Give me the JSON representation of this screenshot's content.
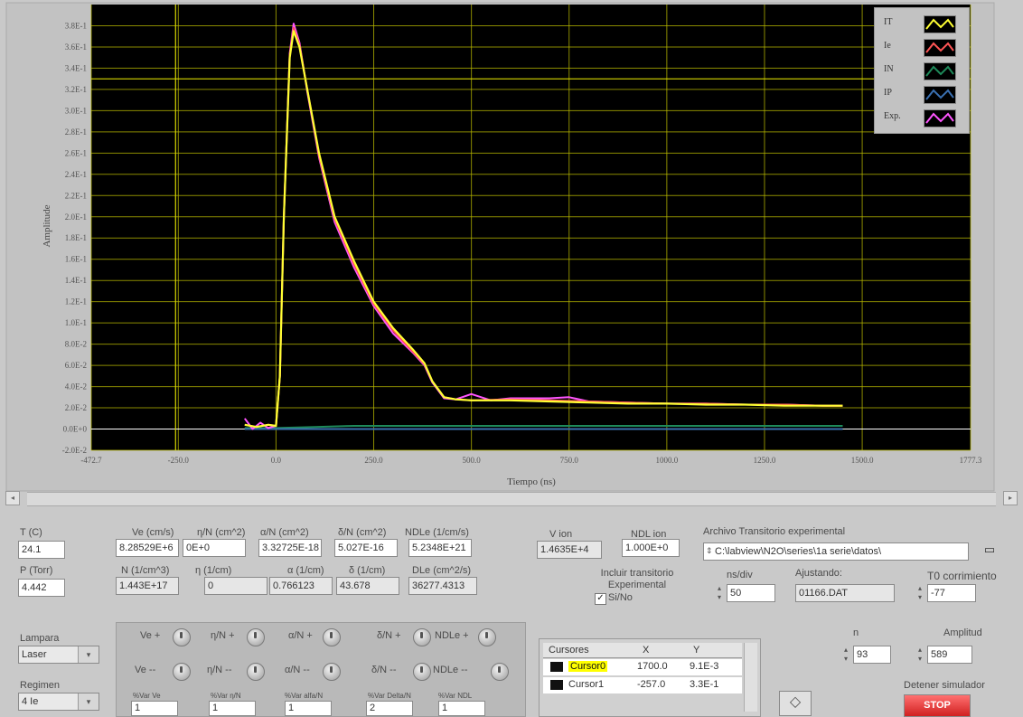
{
  "chart_data": {
    "type": "line",
    "xlabel": "Tiempo (ns)",
    "ylabel": "Amplitude",
    "xlim": [
      -472.7,
      1777.3
    ],
    "ylim": [
      -0.02,
      0.4
    ],
    "x_ticks": [
      "-472.7",
      "-250.0",
      "0.0",
      "250.0",
      "500.0",
      "750.0",
      "1000.0",
      "1250.0",
      "1500.0",
      "1777.3"
    ],
    "y_ticks": [
      "-2.0E-2",
      "0.0E+0",
      "2.0E-2",
      "4.0E-2",
      "6.0E-2",
      "8.0E-2",
      "1.0E-1",
      "1.2E-1",
      "1.4E-1",
      "1.6E-1",
      "1.8E-1",
      "2.0E-1",
      "2.2E-1",
      "2.4E-1",
      "2.6E-1",
      "2.8E-1",
      "3.0E-1",
      "3.2E-1",
      "3.4E-1",
      "3.6E-1",
      "3.8E-1"
    ],
    "grid": true,
    "legend_position": "top-right",
    "cursor_x_value": -257.0,
    "cursor_y_value": 0.33,
    "series": [
      {
        "name": "IT",
        "color": "#ffff33",
        "x": [
          -80,
          -50,
          -20,
          0,
          10,
          20,
          35,
          45,
          60,
          80,
          110,
          150,
          200,
          250,
          300,
          350,
          380,
          400,
          430,
          460,
          500,
          600,
          700,
          800,
          900,
          1000,
          1100,
          1200,
          1300,
          1400,
          1450
        ],
        "y": [
          0.004,
          0.002,
          0.004,
          0.003,
          0.05,
          0.2,
          0.35,
          0.375,
          0.36,
          0.32,
          0.26,
          0.2,
          0.158,
          0.12,
          0.095,
          0.075,
          0.062,
          0.045,
          0.03,
          0.028,
          0.027,
          0.027,
          0.026,
          0.025,
          0.024,
          0.024,
          0.023,
          0.023,
          0.022,
          0.022,
          0.022
        ]
      },
      {
        "name": "Ie",
        "color": "#ff5555",
        "x": [
          -80,
          -50,
          -20,
          0,
          10,
          20,
          35,
          45,
          60,
          80,
          110,
          150,
          200,
          250,
          300,
          350,
          380,
          400,
          430,
          460,
          500,
          600,
          700,
          800,
          900,
          1000,
          1100,
          1200,
          1300,
          1400,
          1450
        ],
        "y": [
          0.004,
          0.002,
          0.004,
          0.003,
          0.05,
          0.2,
          0.352,
          0.378,
          0.362,
          0.32,
          0.258,
          0.198,
          0.155,
          0.118,
          0.093,
          0.073,
          0.061,
          0.045,
          0.03,
          0.028,
          0.027,
          0.028,
          0.027,
          0.026,
          0.025,
          0.024,
          0.024,
          0.023,
          0.023,
          0.022,
          0.022
        ]
      },
      {
        "name": "IN",
        "color": "#1e8a5a",
        "x": [
          -80,
          0,
          100,
          200,
          400,
          800,
          1200,
          1450
        ],
        "y": [
          0.001,
          0.001,
          0.002,
          0.003,
          0.003,
          0.003,
          0.003,
          0.003
        ]
      },
      {
        "name": "IP",
        "color": "#3a6fb0",
        "x": [
          -80,
          0,
          100,
          400,
          800,
          1200,
          1450
        ],
        "y": [
          0.0,
          0.0,
          0.0,
          0.0,
          0.0,
          0.0,
          0.0
        ]
      },
      {
        "name": "Exp.",
        "color": "#ff55ff",
        "x": [
          -80,
          -60,
          -40,
          -20,
          0,
          10,
          20,
          35,
          45,
          60,
          80,
          110,
          150,
          200,
          250,
          300,
          350,
          380,
          400,
          430,
          460,
          500,
          550,
          600,
          700,
          750,
          800,
          900,
          1000,
          1100,
          1200,
          1300,
          1400,
          1450
        ],
        "y": [
          0.01,
          0.0,
          0.006,
          0.001,
          0.003,
          0.05,
          0.2,
          0.354,
          0.382,
          0.364,
          0.318,
          0.256,
          0.195,
          0.152,
          0.116,
          0.09,
          0.072,
          0.06,
          0.044,
          0.029,
          0.028,
          0.033,
          0.027,
          0.029,
          0.029,
          0.03,
          0.026,
          0.025,
          0.024,
          0.024,
          0.023,
          0.023,
          0.022,
          0.022
        ]
      }
    ]
  },
  "params": {
    "T_label": "T (C)",
    "T_value": "24.1",
    "P_label": "P (Torr)",
    "P_value": "4.442",
    "ve_label": "Ve (cm/s)",
    "ve_value": "8.28529E+6",
    "eta_label": "η/N (cm^2)",
    "eta_value": "0E+0",
    "alpha_label": "α/N (cm^2)",
    "alpha_value": "3.32725E-18",
    "delta_label": "δ/N (cm^2)",
    "delta_value": "5.027E-16",
    "ndle_label": "NDLe (1/cm/s)",
    "ndle_value": "5.2348E+21",
    "N_label": "N (1/cm^3)",
    "N_value": "1.443E+17",
    "eta2_label": "η (1/cm)",
    "eta2_value": "0",
    "alpha2_label": "α (1/cm)",
    "alpha2_value": "0.766123",
    "delta2_label": "δ (1/cm)",
    "delta2_value": "43.678",
    "dle_label": "DLe (cm^2/s)",
    "dle_value": "36277.4313",
    "vion_label": "V ion",
    "vion_value": "1.4635E+4",
    "ndlion_label": "NDL ion",
    "ndlion_value": "1.000E+0",
    "archivo_label": "Archivo Transitorio experimental",
    "archivo_value": "C:\\labview\\N2O\\series\\1a serie\\datos\\",
    "incluir_label": "Incluir transitorio Experimental",
    "incluir_check": "Si/No",
    "nsdiv_label": "ns/div",
    "nsdiv_value": "50",
    "ajustando_label": "Ajustando:",
    "ajustando_value": "01166.DAT",
    "t0_label": "T0 corrimiento",
    "t0_value": "-77",
    "lampara_label": "Lampara",
    "lampara_value": "Laser",
    "regimen_label": "Regimen",
    "regimen_value": "4 Ie",
    "n_label": "n",
    "n_value": "93",
    "amplitud_label": "Amplitud",
    "amplitud_value": "589",
    "detener_label": "Detener simulador",
    "stop_label": "STOP"
  },
  "knobs": {
    "ve_plus": "Ve +",
    "ve_minus": "Ve --",
    "eta_plus": "η/N +",
    "eta_minus": "η/N --",
    "alpha_plus": "α/N +",
    "alpha_minus": "α/N --",
    "delta_plus": "δ/N +",
    "delta_minus": "δ/N --",
    "ndle_plus": "NDLe +",
    "ndle_minus": "NDLe --",
    "sub_ve": "%Var Ve",
    "sub_eta": "%Var η/N",
    "sub_alpha": "%Var alfa/N",
    "sub_delta": "%Var Delta/N",
    "sub_ndl": "%Var NDL",
    "sub_ve_val": "1",
    "sub_eta_val": "1",
    "sub_alpha_val": "1",
    "sub_delta_val": "2",
    "sub_ndl_val": "1"
  },
  "cursors": {
    "header": [
      "Cursores",
      "X",
      "Y"
    ],
    "rows": [
      {
        "name": "Cursor0",
        "x": "1700.0",
        "y": "9.1E-3"
      },
      {
        "name": "Cursor1",
        "x": "-257.0",
        "y": "3.3E-1"
      }
    ]
  }
}
